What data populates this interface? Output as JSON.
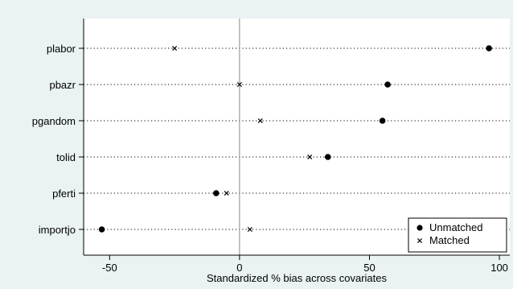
{
  "chart_data": {
    "type": "scatter",
    "xlabel": "Standardized % bias across covariates",
    "xlim": [
      -60,
      104
    ],
    "x_ticks": [
      -50,
      0,
      50,
      100
    ],
    "x_tick_labels": [
      "-50",
      "0",
      "50",
      "100"
    ],
    "categories": [
      "plabor",
      "pbazr",
      "pgandom",
      "tolid",
      "pferti",
      "importjo"
    ],
    "series": [
      {
        "name": "Unmatched",
        "marker": "circle",
        "values": [
          96,
          57,
          55,
          34,
          -9,
          -53
        ]
      },
      {
        "name": "Matched",
        "marker": "x",
        "values": [
          -25,
          0,
          8,
          27,
          -5,
          4
        ]
      }
    ],
    "reference_line_x": 0,
    "grid": "dotted horizontal lines at each covariate",
    "legend_position": "bottom-right",
    "colors": {
      "outer_background": "#eaf2f3",
      "plot_background": "#ffffff",
      "marks": "#000000",
      "reference_line": "#888888"
    }
  }
}
